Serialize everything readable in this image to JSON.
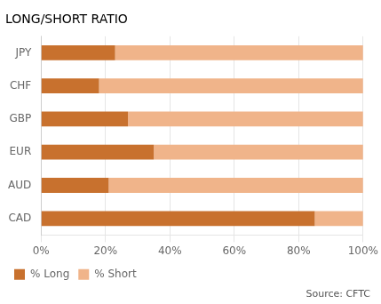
{
  "chart_data": {
    "type": "bar",
    "orientation": "horizontal",
    "stacked": true,
    "title": "LONG/SHORT RATIO",
    "categories": [
      "CAD",
      "AUD",
      "EUR",
      "GBP",
      "CHF",
      "JPY"
    ],
    "series": [
      {
        "name": "% Long",
        "color": "#C8712E",
        "values": [
          85,
          21,
          35,
          27,
          18,
          23
        ]
      },
      {
        "name": "% Short",
        "color": "#F0B48A",
        "values": [
          15,
          79,
          65,
          73,
          82,
          77
        ]
      }
    ],
    "xlim": [
      0,
      100
    ],
    "xticks": [
      {
        "value": 0,
        "label": "0%"
      },
      {
        "value": 20,
        "label": "20%"
      },
      {
        "value": 40,
        "label": "40%"
      },
      {
        "value": 60,
        "label": "60%"
      },
      {
        "value": 80,
        "label": "80%"
      },
      {
        "value": 100,
        "label": "100%"
      }
    ],
    "grid": true,
    "legend": "lower left",
    "annotation": "Source: CFTC"
  }
}
